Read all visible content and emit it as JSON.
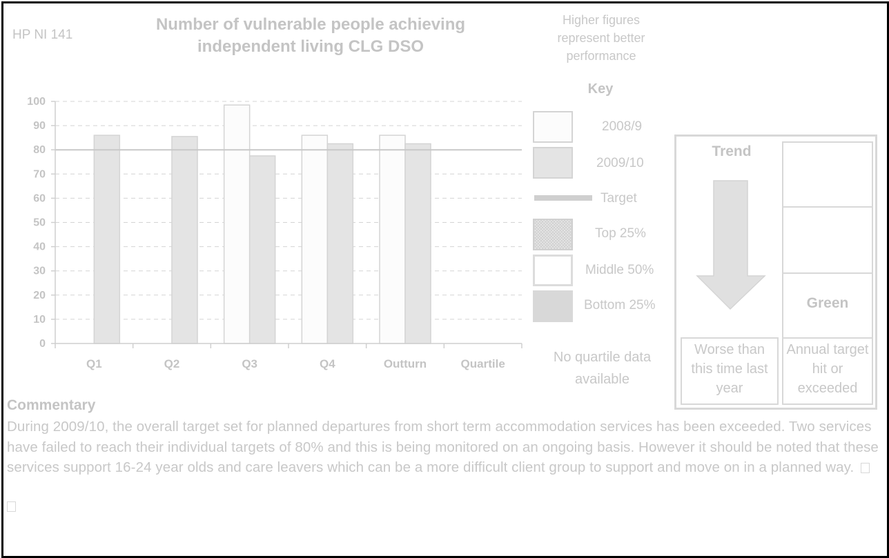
{
  "header": {
    "code": "HP NI 141",
    "title_line1": "Number of vulnerable people achieving",
    "title_line2": "independent living CLG DSO",
    "polarity": "Higher figures represent better performance"
  },
  "chart_data": {
    "type": "bar",
    "categories": [
      "Q1",
      "Q2",
      "Q3",
      "Q4",
      "Outturn",
      "Quartile"
    ],
    "series": [
      {
        "name": "2008/9",
        "values": [
          null,
          null,
          98.5,
          86,
          86,
          null
        ],
        "color": "#fcfcfc"
      },
      {
        "name": "2009/10",
        "values": [
          86,
          85.5,
          77.5,
          82.5,
          82.5,
          null
        ],
        "color": "#e4e4e4"
      }
    ],
    "target": 80,
    "ylim": [
      0,
      100
    ],
    "yticks": [
      0,
      10,
      20,
      30,
      40,
      50,
      60,
      70,
      80,
      90,
      100
    ],
    "grid": true,
    "legend_position": "right"
  },
  "key": {
    "title": "Key",
    "items": [
      {
        "label": "2008/9",
        "swatch": "series-2008"
      },
      {
        "label": "2009/10",
        "swatch": "series-2009"
      },
      {
        "label": "Target",
        "swatch": "target-line"
      },
      {
        "label": "Top 25%",
        "swatch": "top-quartile"
      },
      {
        "label": "Middle 50%",
        "swatch": "middle-quartile"
      },
      {
        "label": "Bottom 25%",
        "swatch": "bottom-quartile"
      }
    ],
    "no_quartile": "No quartile data available"
  },
  "status": {
    "trend_title": "Trend",
    "trend_direction": "down-arrow-icon",
    "trend_label": "Worse than this time last year",
    "rag": "Green",
    "target_label": "Annual target hit or exceeded"
  },
  "commentary": {
    "title": "Commentary",
    "body": "During 2009/10, the overall target set for planned departures from short term accommodation services has been exceeded. Two services have failed to reach their individual targets of 80% and this is being monitored on an ongoing basis.  However it should be noted that these services support 16-24 year olds and care leavers which can be a more difficult client group to support and move on in a planned way."
  },
  "colors": {
    "text": "#c8c8c8",
    "grid": "#d4d4d4",
    "target_line": "#c8c8c8",
    "frame": "#000000"
  }
}
